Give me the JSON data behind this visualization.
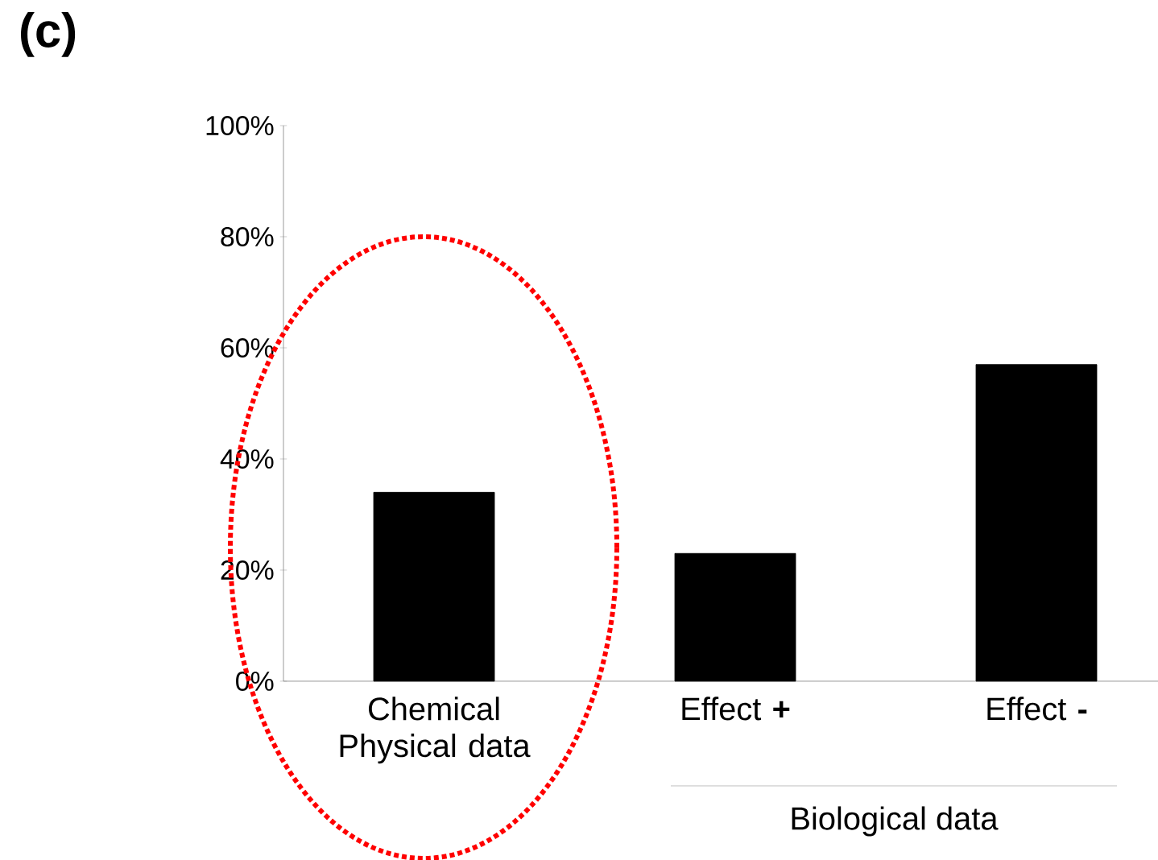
{
  "chart_data": {
    "type": "bar",
    "title": "(c)",
    "categories": [
      "Chemical Physical data",
      "Effect **+**",
      "Effect **-**"
    ],
    "values": [
      34,
      23,
      57
    ],
    "color": "#000000",
    "ylim": [
      0,
      100
    ],
    "yticks": [
      {
        "value": 0,
        "label": "0%"
      },
      {
        "value": 20,
        "label": "20%"
      },
      {
        "value": 40,
        "label": "40%"
      },
      {
        "value": 60,
        "label": "60%"
      },
      {
        "value": 80,
        "label": "80%"
      },
      {
        "value": 100,
        "label": "100%"
      }
    ],
    "grid": false,
    "annotations": [
      "Biological data"
    ]
  }
}
